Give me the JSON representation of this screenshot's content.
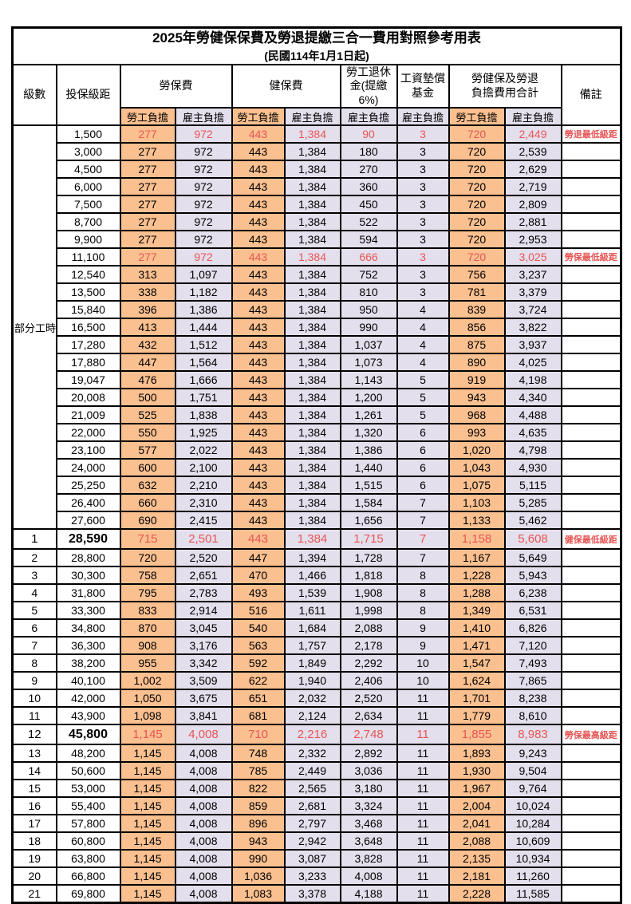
{
  "title": "2025年勞健保保費及勞退提繳三合一費用對照參考用表",
  "subtitle": "(民國114年1月1日起)",
  "columns": {
    "level": "級數",
    "bracket": "投保級距",
    "labor_insurance": "勞保費",
    "health_insurance": "健保費",
    "pension": "勞工退休\n金(提繳6%)",
    "wage_fund": "工資墊償\n基金",
    "total": "勞健保及勞退\n負擔費用合計",
    "remark": "備註",
    "employee_share": "勞工負擔",
    "employer_share": "雇主負擔"
  },
  "part_time": {
    "label": "部分工時",
    "rowspan": 23
  },
  "colors": {
    "employee_bg": "#FAC090",
    "employer_bg": "#E4DFEC",
    "highlight_text": "#E85555",
    "border": "#000000"
  },
  "rows": [
    {
      "br": "1,500",
      "v": [
        "277",
        "972",
        "443",
        "1,384",
        "90",
        "3",
        "720",
        "2,449"
      ],
      "note": "勞退最低級距",
      "hl": true
    },
    {
      "br": "3,000",
      "v": [
        "277",
        "972",
        "443",
        "1,384",
        "180",
        "3",
        "720",
        "2,539"
      ]
    },
    {
      "br": "4,500",
      "v": [
        "277",
        "972",
        "443",
        "1,384",
        "270",
        "3",
        "720",
        "2,629"
      ]
    },
    {
      "br": "6,000",
      "v": [
        "277",
        "972",
        "443",
        "1,384",
        "360",
        "3",
        "720",
        "2,719"
      ]
    },
    {
      "br": "7,500",
      "v": [
        "277",
        "972",
        "443",
        "1,384",
        "450",
        "3",
        "720",
        "2,809"
      ]
    },
    {
      "br": "8,700",
      "v": [
        "277",
        "972",
        "443",
        "1,384",
        "522",
        "3",
        "720",
        "2,881"
      ]
    },
    {
      "br": "9,900",
      "v": [
        "277",
        "972",
        "443",
        "1,384",
        "594",
        "3",
        "720",
        "2,953"
      ]
    },
    {
      "br": "11,100",
      "v": [
        "277",
        "972",
        "443",
        "1,384",
        "666",
        "3",
        "720",
        "3,025"
      ],
      "note": "勞保最低級距",
      "hl": true
    },
    {
      "br": "12,540",
      "v": [
        "313",
        "1,097",
        "443",
        "1,384",
        "752",
        "3",
        "756",
        "3,237"
      ]
    },
    {
      "br": "13,500",
      "v": [
        "338",
        "1,182",
        "443",
        "1,384",
        "810",
        "3",
        "781",
        "3,379"
      ]
    },
    {
      "br": "15,840",
      "v": [
        "396",
        "1,386",
        "443",
        "1,384",
        "950",
        "4",
        "839",
        "3,724"
      ]
    },
    {
      "br": "16,500",
      "v": [
        "413",
        "1,444",
        "443",
        "1,384",
        "990",
        "4",
        "856",
        "3,822"
      ]
    },
    {
      "br": "17,280",
      "v": [
        "432",
        "1,512",
        "443",
        "1,384",
        "1,037",
        "4",
        "875",
        "3,937"
      ]
    },
    {
      "br": "17,880",
      "v": [
        "447",
        "1,564",
        "443",
        "1,384",
        "1,073",
        "4",
        "890",
        "4,025"
      ]
    },
    {
      "br": "19,047",
      "v": [
        "476",
        "1,666",
        "443",
        "1,384",
        "1,143",
        "5",
        "919",
        "4,198"
      ]
    },
    {
      "br": "20,008",
      "v": [
        "500",
        "1,751",
        "443",
        "1,384",
        "1,200",
        "5",
        "943",
        "4,340"
      ]
    },
    {
      "br": "21,009",
      "v": [
        "525",
        "1,838",
        "443",
        "1,384",
        "1,261",
        "5",
        "968",
        "4,488"
      ]
    },
    {
      "br": "22,000",
      "v": [
        "550",
        "1,925",
        "443",
        "1,384",
        "1,320",
        "6",
        "993",
        "4,635"
      ]
    },
    {
      "br": "23,100",
      "v": [
        "577",
        "2,022",
        "443",
        "1,384",
        "1,386",
        "6",
        "1,020",
        "4,798"
      ]
    },
    {
      "br": "24,000",
      "v": [
        "600",
        "2,100",
        "443",
        "1,384",
        "1,440",
        "6",
        "1,043",
        "4,930"
      ]
    },
    {
      "br": "25,250",
      "v": [
        "632",
        "2,210",
        "443",
        "1,384",
        "1,515",
        "6",
        "1,075",
        "5,115"
      ]
    },
    {
      "br": "26,400",
      "v": [
        "660",
        "2,310",
        "443",
        "1,384",
        "1,584",
        "7",
        "1,103",
        "5,285"
      ]
    },
    {
      "br": "27,600",
      "v": [
        "690",
        "2,415",
        "443",
        "1,384",
        "1,656",
        "7",
        "1,133",
        "5,462"
      ]
    },
    {
      "lv": "1",
      "br": "28,590",
      "v": [
        "715",
        "2,501",
        "443",
        "1,384",
        "1,715",
        "7",
        "1,158",
        "5,608"
      ],
      "note": "健保最低級距",
      "hl": true,
      "key": true
    },
    {
      "lv": "2",
      "br": "28,800",
      "v": [
        "720",
        "2,520",
        "447",
        "1,394",
        "1,728",
        "7",
        "1,167",
        "5,649"
      ]
    },
    {
      "lv": "3",
      "br": "30,300",
      "v": [
        "758",
        "2,651",
        "470",
        "1,466",
        "1,818",
        "8",
        "1,228",
        "5,943"
      ]
    },
    {
      "lv": "4",
      "br": "31,800",
      "v": [
        "795",
        "2,783",
        "493",
        "1,539",
        "1,908",
        "8",
        "1,288",
        "6,238"
      ]
    },
    {
      "lv": "5",
      "br": "33,300",
      "v": [
        "833",
        "2,914",
        "516",
        "1,611",
        "1,998",
        "8",
        "1,349",
        "6,531"
      ]
    },
    {
      "lv": "6",
      "br": "34,800",
      "v": [
        "870",
        "3,045",
        "540",
        "1,684",
        "2,088",
        "9",
        "1,410",
        "6,826"
      ]
    },
    {
      "lv": "7",
      "br": "36,300",
      "v": [
        "908",
        "3,176",
        "563",
        "1,757",
        "2,178",
        "9",
        "1,471",
        "7,120"
      ]
    },
    {
      "lv": "8",
      "br": "38,200",
      "v": [
        "955",
        "3,342",
        "592",
        "1,849",
        "2,292",
        "10",
        "1,547",
        "7,493"
      ]
    },
    {
      "lv": "9",
      "br": "40,100",
      "v": [
        "1,002",
        "3,509",
        "622",
        "1,940",
        "2,406",
        "10",
        "1,624",
        "7,865"
      ]
    },
    {
      "lv": "10",
      "br": "42,000",
      "v": [
        "1,050",
        "3,675",
        "651",
        "2,032",
        "2,520",
        "11",
        "1,701",
        "8,238"
      ]
    },
    {
      "lv": "11",
      "br": "43,900",
      "v": [
        "1,098",
        "3,841",
        "681",
        "2,124",
        "2,634",
        "11",
        "1,779",
        "8,610"
      ]
    },
    {
      "lv": "12",
      "br": "45,800",
      "v": [
        "1,145",
        "4,008",
        "710",
        "2,216",
        "2,748",
        "11",
        "1,855",
        "8,983"
      ],
      "note": "勞保最高級距",
      "hl": true,
      "key": true
    },
    {
      "lv": "13",
      "br": "48,200",
      "v": [
        "1,145",
        "4,008",
        "748",
        "2,332",
        "2,892",
        "11",
        "1,893",
        "9,243"
      ]
    },
    {
      "lv": "14",
      "br": "50,600",
      "v": [
        "1,145",
        "4,008",
        "785",
        "2,449",
        "3,036",
        "11",
        "1,930",
        "9,504"
      ]
    },
    {
      "lv": "15",
      "br": "53,000",
      "v": [
        "1,145",
        "4,008",
        "822",
        "2,565",
        "3,180",
        "11",
        "1,967",
        "9,764"
      ]
    },
    {
      "lv": "16",
      "br": "55,400",
      "v": [
        "1,145",
        "4,008",
        "859",
        "2,681",
        "3,324",
        "11",
        "2,004",
        "10,024"
      ]
    },
    {
      "lv": "17",
      "br": "57,800",
      "v": [
        "1,145",
        "4,008",
        "896",
        "2,797",
        "3,468",
        "11",
        "2,041",
        "10,284"
      ]
    },
    {
      "lv": "18",
      "br": "60,800",
      "v": [
        "1,145",
        "4,008",
        "943",
        "2,942",
        "3,648",
        "11",
        "2,088",
        "10,609"
      ]
    },
    {
      "lv": "19",
      "br": "63,800",
      "v": [
        "1,145",
        "4,008",
        "990",
        "3,087",
        "3,828",
        "11",
        "2,135",
        "10,934"
      ]
    },
    {
      "lv": "20",
      "br": "66,800",
      "v": [
        "1,145",
        "4,008",
        "1,036",
        "3,233",
        "4,008",
        "11",
        "2,181",
        "11,260"
      ]
    },
    {
      "lv": "21",
      "br": "69,800",
      "v": [
        "1,145",
        "4,008",
        "1,083",
        "3,378",
        "4,188",
        "11",
        "2,228",
        "11,585"
      ]
    }
  ]
}
